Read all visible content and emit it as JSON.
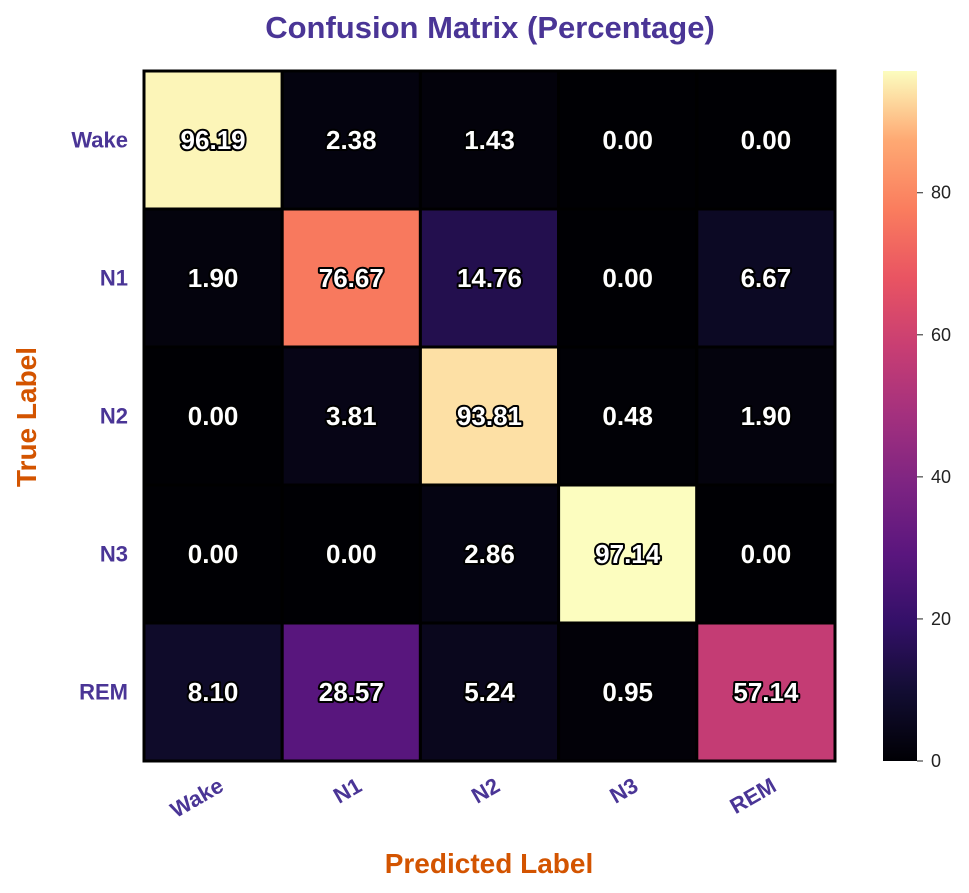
{
  "chart_data": {
    "type": "heatmap",
    "title": "Confusion Matrix (Percentage)",
    "xlabel": "Predicted Label",
    "ylabel": "True Label",
    "x_categories": [
      "Wake",
      "N1",
      "N2",
      "N3",
      "REM"
    ],
    "y_categories": [
      "Wake",
      "N1",
      "N2",
      "N3",
      "REM"
    ],
    "values": [
      [
        96.19,
        2.38,
        1.43,
        0.0,
        0.0
      ],
      [
        1.9,
        76.67,
        14.76,
        0.0,
        6.67
      ],
      [
        0.0,
        3.81,
        93.81,
        0.48,
        1.9
      ],
      [
        0.0,
        0.0,
        2.86,
        97.14,
        0.0
      ],
      [
        8.1,
        28.57,
        5.24,
        0.95,
        57.14
      ]
    ],
    "value_format": "2 decimals",
    "colormap": "magma",
    "colorbar": {
      "range": [
        0,
        97.14
      ],
      "ticks": [
        0,
        20,
        40,
        60,
        80
      ]
    }
  },
  "colors": {
    "title": "#4a3596",
    "tick_labels": "#4a3596",
    "axis_labels": "#d35400",
    "cell_border": "#000000"
  }
}
